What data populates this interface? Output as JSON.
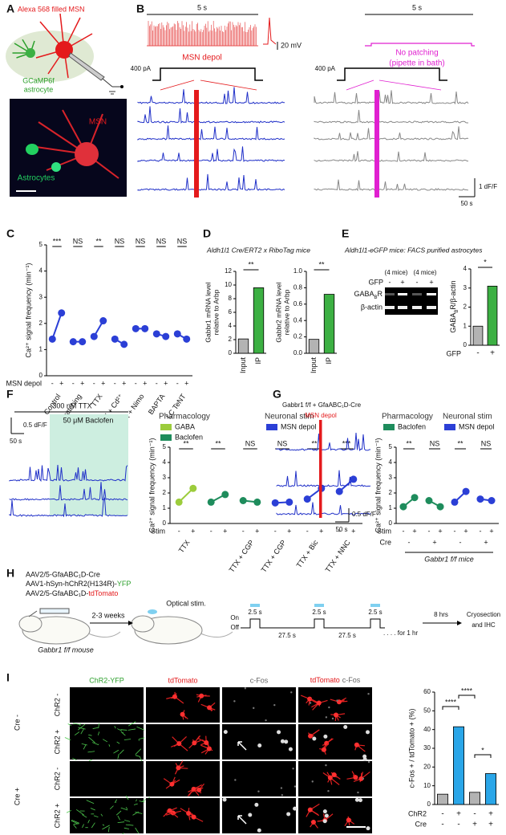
{
  "panels": {
    "A": {
      "letter": "A",
      "title": "Alexa 568 filled MSN",
      "astro1": "GCaMP6f",
      "astro2": "astrocyte",
      "msn": "MSN",
      "astrocytes": "Astrocytes"
    },
    "B": {
      "letter": "B",
      "left": {
        "time": "5 s",
        "mv": "20 mV",
        "label": "MSN depol",
        "current": "400 pA"
      },
      "right": {
        "time": "5 s",
        "label1": "No patching",
        "label2": "(pipette in bath)",
        "current": "400 pA"
      },
      "dff": "1 dF/F",
      "time": "50 s"
    },
    "C": {
      "letter": "C",
      "ylabel": "Ca²⁺ signal frequency (min⁻¹)",
      "ylim": [
        0,
        5
      ],
      "yticks": [
        0,
        1,
        2,
        3,
        4,
        5
      ],
      "color": "#2b3fd6",
      "stim_label": "MSN depol",
      "stim_off": "-",
      "stim_on": "+",
      "pairs": [
        {
          "category": "Control",
          "pre": 1.4,
          "post": 2.4,
          "sig": "***"
        },
        {
          "category": "No patching",
          "pre": 1.3,
          "post": 1.3,
          "sig": "NS"
        },
        {
          "category": "TTX",
          "pre": 1.5,
          "post": 2.1,
          "sig": "**"
        },
        {
          "category": "TTX + Cd²⁺",
          "pre": 1.4,
          "post": 1.2,
          "sig": "NS"
        },
        {
          "category": "TTX + Nimo",
          "pre": 1.8,
          "post": 1.8,
          "sig": "NS"
        },
        {
          "category": "BAPTA",
          "pre": 1.6,
          "post": 1.5,
          "sig": "NS"
        },
        {
          "category": "LC TeNT",
          "pre": 1.6,
          "post": 1.4,
          "sig": "NS"
        }
      ]
    },
    "D": {
      "letter": "D",
      "title": "Aldh1l1 Cre/ERT2 x RiboTag mice",
      "charts": [
        {
          "ylabel": [
            "Gabbr1 mRNA level",
            "relative to Arbp"
          ],
          "ylim": [
            0,
            12
          ],
          "yticks": [
            0,
            2,
            4,
            6,
            8,
            10,
            12
          ],
          "categories": [
            "Input",
            "IP"
          ],
          "values": [
            2.1,
            9.6
          ],
          "colors": [
            "#b3b3b3",
            "#3cb043"
          ],
          "sig": "**"
        },
        {
          "ylabel": [
            "Gabbr2 mRNA level",
            "relative to Arbp"
          ],
          "ylim": [
            0,
            1
          ],
          "yticks": [
            {
              "value": 0,
              "label": "0.0"
            },
            {
              "value": 0.2,
              "label": "0.2"
            },
            {
              "value": 0.4,
              "label": "0.4"
            },
            {
              "value": 0.6,
              "label": "0.6"
            },
            {
              "value": 0.8,
              "label": "0.8"
            },
            {
              "value": 1,
              "label": "1.0"
            }
          ],
          "categories": [
            "Input",
            "IP"
          ],
          "values": [
            0.17,
            0.72
          ],
          "colors": [
            "#b3b3b3",
            "#3cb043"
          ],
          "sig": "**"
        }
      ]
    },
    "E": {
      "letter": "E",
      "title": "Aldh1l1-eGFP mice: FACS purified astrocytes",
      "gel": {
        "gfp": "GFP",
        "lanes": [
          "-",
          "+",
          "-",
          "+"
        ],
        "mice": [
          "(4 mice)",
          "(4 mice)"
        ],
        "band1": [
          "GABA",
          "B",
          "R"
        ],
        "band2": "β-actin"
      },
      "chart": {
        "ylabel": [
          "GABA",
          "B",
          "R/β-actin"
        ],
        "ylim": [
          0,
          4
        ],
        "yticks": [
          0,
          1,
          2,
          3,
          4
        ],
        "xlabel": "GFP",
        "categories": [
          "-",
          "+"
        ],
        "values": [
          1.0,
          3.1
        ],
        "colors": [
          "#b3b3b3",
          "#3cb043"
        ],
        "sig": "*"
      }
    },
    "F": {
      "letter": "F",
      "trace": {
        "title": "300 nM TTX",
        "drug": "50 μM Baclofen",
        "dff": "0.5 dF/F",
        "time": "50 s"
      },
      "legend": [
        {
          "title": "Pharmacology",
          "items": [
            {
              "name": "GABA",
              "color": "#9ccc3c"
            },
            {
              "name": "Baclofen",
              "color": "#1e8c5c"
            }
          ]
        },
        {
          "title": "Neuronal stim",
          "items": [
            {
              "name": "MSN depol",
              "color": "#2b3fd6"
            }
          ]
        }
      ],
      "ylabel": "Ca²⁺ signal frequency (min⁻¹)",
      "ylim": [
        0,
        5
      ],
      "yticks": [
        0,
        1,
        2,
        3,
        4,
        5
      ],
      "stim_label": "Stim",
      "stim_off": "-",
      "stim_on": "+",
      "pairs": [
        {
          "category": "TTX",
          "color": "#9ccc3c",
          "pre": 1.4,
          "post": 2.3,
          "sig": "**"
        },
        {
          "category": null,
          "color": "#1e8c5c",
          "pre": 1.4,
          "post": 1.9,
          "sig": "**"
        },
        {
          "category": "TTX + CGP",
          "color": "#1e8c5c",
          "pre": 1.5,
          "post": 1.4,
          "sig": "NS"
        },
        {
          "category": "TTX + CGP",
          "color": "#2b3fd6",
          "pre": 1.35,
          "post": 1.4,
          "sig": "NS"
        },
        {
          "category": "TTX + Bic",
          "color": "#2b3fd6",
          "pre": 1.6,
          "post": 2.3,
          "sig": "**"
        },
        {
          "category": "TTX + NNC",
          "color": "#2b3fd6",
          "pre": 2.1,
          "post": 2.9,
          "sig": "***"
        }
      ]
    },
    "G": {
      "letter": "G",
      "trace": {
        "title": "Gabbr1 f/f + GfaABC₁D-Cre",
        "stim": "MSN depol",
        "dff": "0.5 dF/F",
        "time": "50 s"
      },
      "legend": [
        {
          "title": "Pharmacology",
          "items": [
            {
              "name": "Baclofen",
              "color": "#1e8c5c"
            }
          ]
        },
        {
          "title": "Neuronal stim",
          "items": [
            {
              "name": "MSN depol",
              "color": "#2b3fd6"
            }
          ]
        }
      ],
      "ylabel": "Ca²⁺ signal frequency (min⁻¹)",
      "ylim": [
        0,
        5
      ],
      "yticks": [
        0,
        1,
        2,
        3,
        4,
        5
      ],
      "stim_label": "Stim",
      "stim_off": "-",
      "stim_on": "+",
      "cre_label": "Cre",
      "mice": "Gabbr1 f/f mice",
      "pairs": [
        {
          "color": "#1e8c5c",
          "pre": 1.1,
          "post": 1.7,
          "sig": "**",
          "cre": "-"
        },
        {
          "color": "#1e8c5c",
          "pre": 1.5,
          "post": 1.1,
          "sig": "NS",
          "cre": "+"
        },
        {
          "color": "#2b3fd6",
          "pre": 1.4,
          "post": 2.1,
          "sig": "**",
          "cre": "-"
        },
        {
          "color": "#2b3fd6",
          "pre": 1.6,
          "post": 1.5,
          "sig": "NS",
          "cre": "+"
        }
      ]
    },
    "H": {
      "letter": "H",
      "virus1": "AAV2/5-GfaABC₁D-Cre",
      "virus2": [
        "AAV1-hSyn-hChR2(H134R)-",
        "YFP"
      ],
      "virus3": [
        "AAV2/5-GfaABC₁D-",
        "tdTomato"
      ],
      "wait": "2-3 weeks",
      "mouse": "Gabbr1 f/f mouse",
      "stim": "Optical stim.",
      "on": "On",
      "off": "Off",
      "pulses": [
        "2.5 s",
        "2.5 s",
        "2.5 s"
      ],
      "gaps": [
        "27.5 s",
        "27.5 s"
      ],
      "repeat": ". . . . for 1 hr",
      "delay": "8 hrs",
      "end": [
        "Cryosection",
        "and IHC"
      ]
    },
    "I": {
      "letter": "I",
      "columns": [
        "ChR2-YFP",
        "tdTomato",
        "c-Fos",
        [
          "tdTomato",
          "c-Fos"
        ]
      ],
      "cre": [
        "Cre -",
        "Cre +"
      ],
      "chr2": [
        "ChR2 -",
        "ChR2 +",
        "ChR2 -",
        "ChR2 +"
      ],
      "chart": {
        "ylabel": "c-Fos + / tdTomato + (%)",
        "ylim": [
          0,
          60
        ],
        "yticks": [
          0,
          10,
          20,
          30,
          40,
          50,
          60
        ],
        "values": [
          5.5,
          41.5,
          6.5,
          16.5
        ],
        "colors": [
          "#b3b3b3",
          "#2aa6e8",
          "#b3b3b3",
          "#2aa6e8"
        ],
        "rows": [
          {
            "label": "ChR2",
            "values": [
              "-",
              "+",
              "-",
              "+"
            ]
          },
          {
            "label": "Cre",
            "values": [
              "-",
              "-",
              "+",
              "+"
            ]
          }
        ],
        "sig": [
          "****",
          "****",
          "*"
        ]
      }
    }
  }
}
